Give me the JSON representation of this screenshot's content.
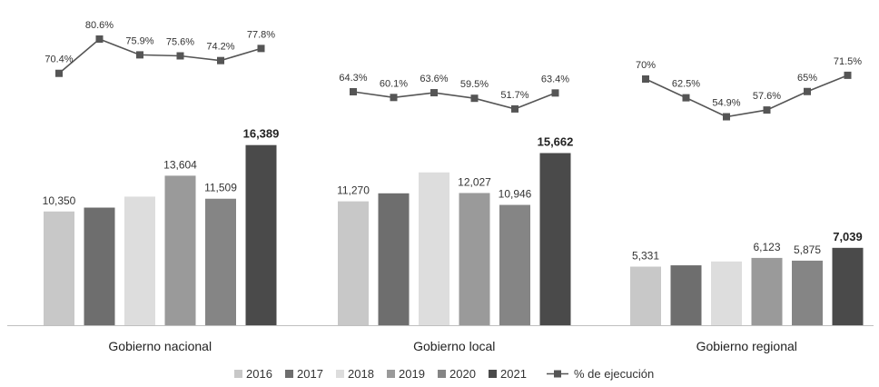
{
  "chart_data": {
    "type": "bar",
    "categories": [
      "Gobierno nacional",
      "Gobierno local",
      "Gobierno regional"
    ],
    "series": [
      {
        "name": "2016",
        "values": [
          10350,
          11270,
          5331
        ],
        "color": "#c8c8c8"
      },
      {
        "name": "2017",
        "values": [
          10700,
          12000,
          5450
        ],
        "color": "#6e6e6e"
      },
      {
        "name": "2018",
        "values": [
          11700,
          13900,
          5800
        ],
        "color": "#dddddd"
      },
      {
        "name": "2019",
        "values": [
          13604,
          12027,
          6123
        ],
        "color": "#9a9a9a"
      },
      {
        "name": "2020",
        "values": [
          11509,
          10946,
          5875
        ],
        "color": "#858585"
      },
      {
        "name": "2021",
        "values": [
          16389,
          15662,
          7039
        ],
        "color": "#4a4a4a"
      }
    ],
    "value_labels": [
      [
        "10,350",
        "",
        "",
        "13,604",
        "11,509",
        "16,389"
      ],
      [
        "11,270",
        "",
        "",
        "12,027",
        "10,946",
        "15,662"
      ],
      [
        "5,331",
        "",
        "",
        "6,123",
        "5,875",
        "7,039"
      ]
    ],
    "execution": {
      "name": "% de ejecución",
      "values": [
        [
          70.4,
          80.6,
          75.9,
          75.6,
          74.2,
          77.8
        ],
        [
          64.3,
          60.1,
          63.6,
          59.5,
          51.7,
          63.4
        ],
        [
          70,
          62.5,
          54.9,
          57.6,
          65,
          71.5
        ]
      ],
      "labels": [
        [
          "70.4%",
          "80.6%",
          "75.9%",
          "75.6%",
          "74.2%",
          "77.8%"
        ],
        [
          "64.3%",
          "60.1%",
          "63.6%",
          "59.5%",
          "51.7%",
          "63.4%"
        ],
        [
          "70%",
          "62.5%",
          "54.9%",
          "57.6%",
          "65%",
          "71.5%"
        ]
      ],
      "color": "#555555"
    },
    "legend": [
      {
        "label": "2016",
        "color": "#c8c8c8"
      },
      {
        "label": "2017",
        "color": "#6e6e6e"
      },
      {
        "label": "2018",
        "color": "#dddddd"
      },
      {
        "label": "2019",
        "color": "#9a9a9a"
      },
      {
        "label": "2020",
        "color": "#858585"
      },
      {
        "label": "2021",
        "color": "#4a4a4a"
      }
    ],
    "legend_line_label": "% de ejecución",
    "legend_position": "bottom",
    "grid": false,
    "ylim": [
      0,
      20000
    ]
  }
}
